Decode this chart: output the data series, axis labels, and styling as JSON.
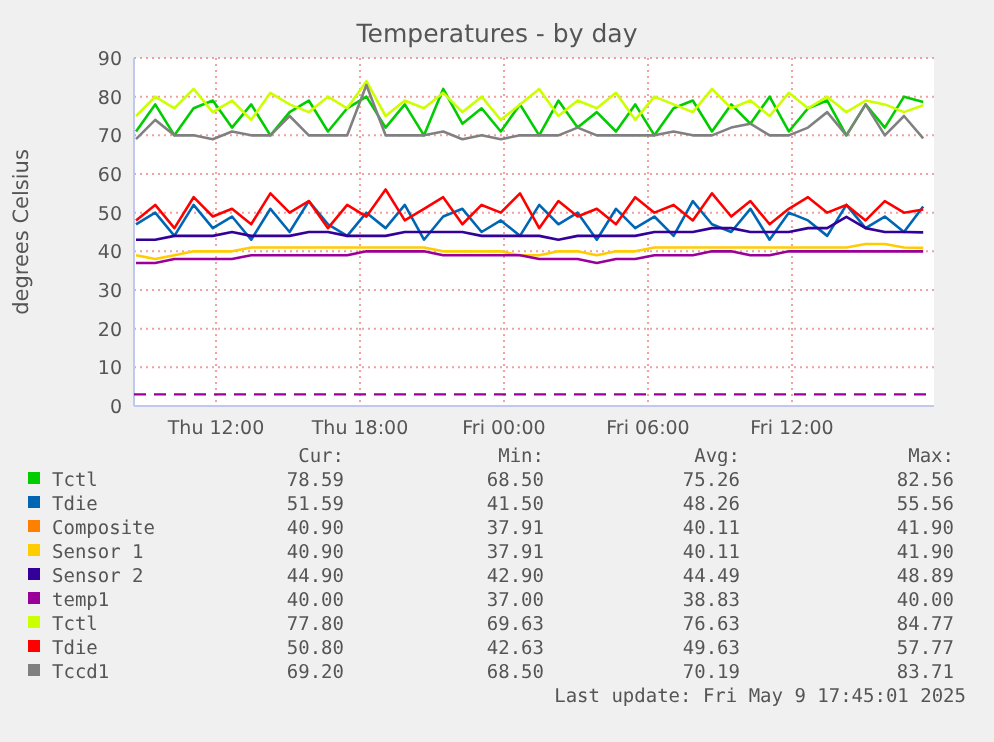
{
  "chart_data": {
    "type": "line",
    "title": "Temperatures - by day",
    "ylabel": "degrees Celsius",
    "x": [
      "2025-05-08T08:40",
      "2025-05-08T09:28",
      "2025-05-08T10:16",
      "2025-05-08T11:04",
      "2025-05-08T11:52",
      "2025-05-08T12:40",
      "2025-05-08T13:28",
      "2025-05-08T14:16",
      "2025-05-08T15:04",
      "2025-05-08T15:52",
      "2025-05-08T16:40",
      "2025-05-08T17:28",
      "2025-05-08T18:16",
      "2025-05-08T19:04",
      "2025-05-08T19:52",
      "2025-05-08T20:40",
      "2025-05-08T21:28",
      "2025-05-08T22:16",
      "2025-05-08T23:04",
      "2025-05-08T23:52",
      "2025-05-09T00:40",
      "2025-05-09T01:28",
      "2025-05-09T02:16",
      "2025-05-09T03:04",
      "2025-05-09T03:52",
      "2025-05-09T04:40",
      "2025-05-09T05:28",
      "2025-05-09T06:16",
      "2025-05-09T07:04",
      "2025-05-09T07:52",
      "2025-05-09T08:40",
      "2025-05-09T09:28",
      "2025-05-09T10:16",
      "2025-05-09T11:04",
      "2025-05-09T11:52",
      "2025-05-09T12:40",
      "2025-05-09T13:28",
      "2025-05-09T14:16",
      "2025-05-09T15:04",
      "2025-05-09T15:52",
      "2025-05-09T16:40",
      "2025-05-09T17:28"
    ],
    "xlim": [
      "2025-05-08T08:35",
      "2025-05-09T17:55"
    ],
    "xticks": [
      {
        "value": "2025-05-08T12:00",
        "label": "Thu 12:00"
      },
      {
        "value": "2025-05-08T18:00",
        "label": "Thu 18:00"
      },
      {
        "value": "2025-05-09T00:00",
        "label": "Fri 00:00"
      },
      {
        "value": "2025-05-09T06:00",
        "label": "Fri 06:00"
      },
      {
        "value": "2025-05-09T12:00",
        "label": "Fri 12:00"
      }
    ],
    "ylim": [
      0,
      90
    ],
    "yticks": [
      0,
      10,
      20,
      30,
      40,
      50,
      60,
      70,
      80,
      90
    ],
    "grid": true,
    "legend": "bottom",
    "line_style": "solid",
    "marker": "none",
    "ref_lines": [
      {
        "axis": "y",
        "value": 3,
        "color": "#990099",
        "line_style": "dashed"
      }
    ],
    "series": [
      {
        "name": "Tctl",
        "color": "#00cc00",
        "values": [
          71,
          78,
          70,
          77,
          79,
          72,
          78,
          70,
          76,
          79,
          71,
          77,
          80,
          72,
          78,
          70,
          82,
          73,
          77,
          71,
          78,
          70,
          79,
          72,
          76,
          71,
          78,
          70,
          77,
          79,
          71,
          78,
          73,
          80,
          71,
          77,
          79,
          70,
          78,
          72,
          80,
          78.6
        ]
      },
      {
        "name": "Tdie",
        "color": "#0066b3",
        "values": [
          47,
          50,
          44,
          52,
          46,
          49,
          43,
          51,
          45,
          53,
          47,
          44,
          50,
          46,
          52,
          43,
          49,
          51,
          45,
          48,
          44,
          52,
          47,
          50,
          43,
          51,
          46,
          49,
          44,
          53,
          47,
          45,
          51,
          43,
          50,
          48,
          44,
          52,
          46,
          49,
          45,
          51.6
        ]
      },
      {
        "name": "Composite",
        "color": "#ff8000",
        "values": [
          null,
          null,
          null,
          null,
          null,
          null,
          null,
          null,
          null,
          null,
          null,
          null,
          null,
          null,
          null,
          null,
          null,
          null,
          null,
          null,
          null,
          null,
          null,
          null,
          null,
          null,
          null,
          null,
          null,
          null,
          null,
          null,
          null,
          null,
          null,
          null,
          null,
          null,
          null,
          null,
          null,
          null
        ]
      },
      {
        "name": "Sensor 1",
        "color": "#ffcc00",
        "values": [
          39,
          38,
          39,
          40,
          40,
          40,
          41,
          41,
          41,
          41,
          41,
          41,
          41,
          41,
          41,
          41,
          40,
          40,
          40,
          40,
          39,
          39,
          40,
          40,
          39,
          40,
          40,
          41,
          41,
          41,
          41,
          41,
          41,
          41,
          41,
          41,
          41,
          41,
          41.9,
          41.9,
          41,
          40.9
        ]
      },
      {
        "name": "Sensor 2",
        "color": "#330099",
        "values": [
          43,
          43,
          44,
          44,
          44,
          45,
          44,
          44,
          44,
          45,
          45,
          44,
          44,
          44,
          45,
          45,
          45,
          45,
          44,
          44,
          44,
          44,
          43,
          44,
          44,
          44,
          44,
          45,
          45,
          45,
          46,
          46,
          45,
          45,
          45,
          46,
          46,
          48.9,
          46,
          45,
          45,
          44.9
        ]
      },
      {
        "name": "temp1",
        "color": "#990099",
        "values": [
          37,
          37,
          38,
          38,
          38,
          38,
          39,
          39,
          39,
          39,
          39,
          39,
          40,
          40,
          40,
          40,
          39,
          39,
          39,
          39,
          39,
          38,
          38,
          38,
          37,
          38,
          38,
          39,
          39,
          39,
          40,
          40,
          39,
          39,
          40,
          40,
          40,
          40,
          40,
          40,
          40,
          40
        ]
      },
      {
        "name": "Tctl",
        "color": "#ccff00",
        "values": [
          75,
          80,
          77,
          82,
          76,
          79,
          74,
          81,
          78,
          76,
          80,
          77,
          84,
          75,
          79,
          77,
          81,
          76,
          80,
          74,
          78,
          82,
          75,
          79,
          77,
          81,
          74,
          80,
          78,
          76,
          82,
          77,
          79,
          75,
          81,
          77,
          80,
          76,
          79,
          78,
          76,
          77.8
        ]
      },
      {
        "name": "Tdie",
        "color": "#ff0000",
        "values": [
          48,
          52,
          46,
          54,
          49,
          51,
          47,
          55,
          50,
          53,
          46,
          52,
          49,
          56,
          48,
          51,
          54,
          47,
          52,
          50,
          55,
          46,
          53,
          49,
          51,
          47,
          54,
          50,
          52,
          48,
          55,
          49,
          53,
          47,
          51,
          54,
          50,
          52,
          48,
          53,
          50,
          50.8
        ]
      },
      {
        "name": "Tccd1",
        "color": "#808080",
        "values": [
          69,
          74,
          70,
          70,
          69,
          71,
          70,
          70,
          75,
          70,
          70,
          70,
          83,
          70,
          70,
          70,
          71,
          69,
          70,
          69,
          70,
          70,
          70,
          72,
          70,
          70,
          70,
          70,
          71,
          70,
          70,
          72,
          73,
          70,
          70,
          72,
          76,
          70,
          78,
          70,
          75,
          69.2
        ]
      }
    ],
    "annotations": [
      "Cur:",
      "Min:",
      "Avg:",
      "Max:",
      "78.59",
      "68.50",
      "75.26",
      "82.56",
      "51.59",
      "41.50",
      "48.26",
      "55.56",
      "40.90",
      "37.91",
      "40.11",
      "41.90",
      "40.90",
      "37.91",
      "40.11",
      "41.90",
      "44.90",
      "42.90",
      "44.49",
      "48.89",
      "40.00",
      "37.00",
      "38.83",
      "40.00",
      "77.80",
      "69.63",
      "76.63",
      "84.77",
      "50.80",
      "42.63",
      "49.63",
      "57.77",
      "69.20",
      "68.50",
      "70.19",
      "83.71",
      "Last update: Fri May  9 17:45:01 2025"
    ]
  }
}
